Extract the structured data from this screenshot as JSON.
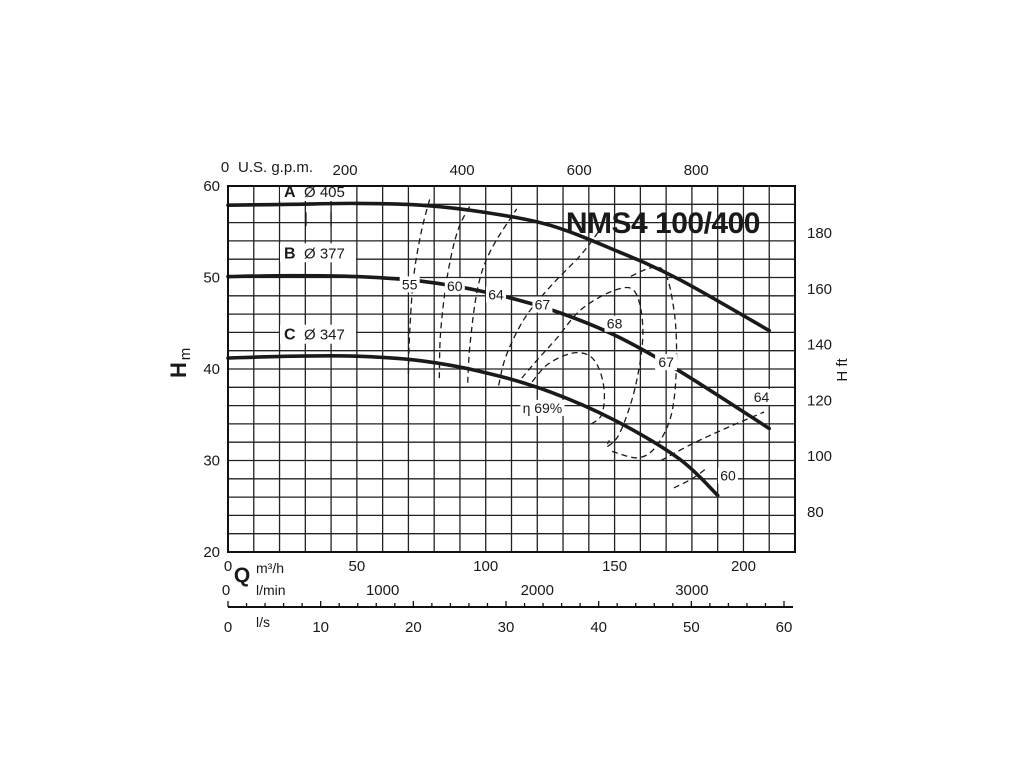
{
  "chart_data": {
    "type": "line",
    "title": "NMS4 100/400",
    "x_primary": {
      "label": "Q",
      "unit": "m³/h",
      "range": [
        0,
        220
      ],
      "ticks": [
        0,
        50,
        100,
        150,
        200
      ]
    },
    "x_top": {
      "label": "U.S. g.p.m.",
      "zero_label": "0",
      "ticks": [
        200,
        400,
        600,
        800
      ]
    },
    "x_lmin": {
      "unit": "l/min",
      "zero_label": "0",
      "ticks": [
        1000,
        2000,
        3000
      ]
    },
    "x_ls": {
      "unit": "l/s",
      "ticks": [
        0,
        10,
        20,
        30,
        40,
        50,
        60
      ]
    },
    "y_left": {
      "label": "H",
      "unit": "m",
      "range": [
        20,
        60
      ],
      "ticks": [
        20,
        30,
        40,
        50,
        60
      ]
    },
    "y_right": {
      "label": "H ft",
      "ticks": [
        80,
        100,
        120,
        140,
        160,
        180
      ]
    },
    "grid": true,
    "series": [
      {
        "name": "A",
        "diameter": "Ø 405",
        "x": [
          0,
          25,
          50,
          75,
          100,
          125,
          150,
          175,
          210
        ],
        "y": [
          57.9,
          58.0,
          58.1,
          57.9,
          57.1,
          55.7,
          53.0,
          49.8,
          44.2
        ]
      },
      {
        "name": "B",
        "diameter": "Ø 377",
        "x": [
          0,
          25,
          50,
          75,
          100,
          125,
          150,
          175,
          210
        ],
        "y": [
          50.1,
          50.2,
          50.1,
          49.6,
          48.4,
          46.5,
          43.7,
          39.8,
          33.5
        ]
      },
      {
        "name": "C",
        "diameter": "Ø 347",
        "x": [
          0,
          25,
          50,
          75,
          100,
          125,
          150,
          175,
          190
        ],
        "y": [
          41.2,
          41.4,
          41.4,
          40.9,
          39.6,
          37.5,
          34.4,
          30.2,
          26.2
        ]
      }
    ],
    "efficiency_curves": [
      {
        "label": "55",
        "x": [
          70,
          70.5,
          72,
          75,
          78.5
        ],
        "y": [
          39.5,
          44,
          50,
          55,
          58.8
        ]
      },
      {
        "label": "60",
        "x": [
          82,
          82.5,
          85,
          89,
          94
        ],
        "y": [
          39,
          44,
          50,
          55,
          57.9
        ]
      },
      {
        "label": "64",
        "x": [
          93,
          94,
          97,
          102,
          112
        ],
        "y": [
          38.5,
          43,
          49,
          53,
          57.5
        ]
      },
      {
        "label": "67",
        "x": [
          105,
          108,
          115,
          125,
          137,
          145
        ],
        "y": [
          38.2,
          41.5,
          45.5,
          49,
          52.5,
          55.5
        ],
        "x2": [
          149,
          159,
          166,
          172,
          174,
          173,
          168,
          155
        ],
        "y2": [
          31,
          30.3,
          31.5,
          35,
          40.5,
          46.5,
          51,
          50
        ]
      },
      {
        "label": "68",
        "x": [
          114,
          120,
          128,
          137,
          150,
          158,
          161,
          158,
          152,
          147,
          148
        ],
        "y": [
          39,
          41,
          43.5,
          46.5,
          48.6,
          48.4,
          44,
          38,
          33,
          31.5,
          32.2
        ]
      },
      {
        "label": "64",
        "x": [
          168,
          180,
          193,
          208
        ],
        "y": [
          30,
          31.8,
          33.5,
          35.3
        ]
      },
      {
        "label": "60",
        "x": [
          173,
          180,
          185
        ],
        "y": [
          27,
          28,
          29
        ]
      },
      {
        "label": "η 69%",
        "x": [
          118,
          124,
          133,
          140,
          144,
          146,
          145,
          141
        ],
        "y": [
          38.6,
          40.5,
          41.7,
          41.5,
          40,
          37.5,
          35,
          34
        ]
      }
    ]
  }
}
